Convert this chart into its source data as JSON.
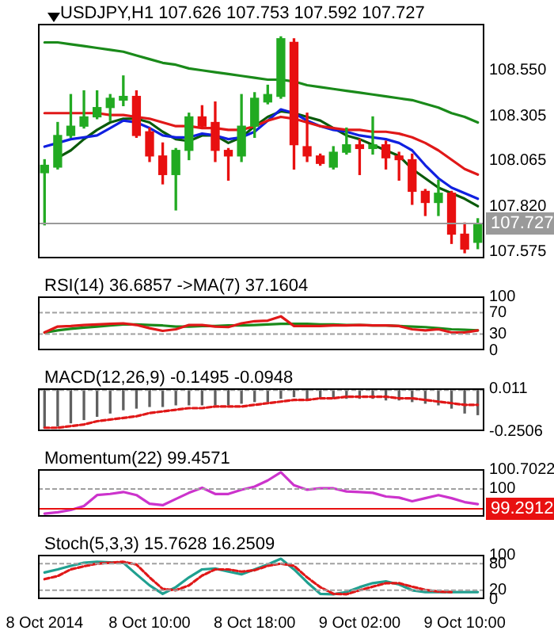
{
  "chart_data": [
    {
      "type": "candlestick",
      "title": "USDJPY,H1 107.626 107.753 107.592 107.727",
      "marker": "none",
      "categories": [
        null,
        null,
        null,
        null,
        null,
        null,
        null,
        null,
        null,
        null,
        null,
        null,
        null,
        null,
        null,
        null,
        null,
        null,
        null,
        null,
        null,
        null,
        null,
        null,
        null,
        null,
        null,
        null,
        null,
        null,
        null,
        null,
        null,
        null
      ],
      "ohlc": [
        [
          108.0,
          108.07,
          107.72,
          108.04
        ],
        [
          108.03,
          108.27,
          108.02,
          108.2
        ],
        [
          108.2,
          108.42,
          108.19,
          108.25
        ],
        [
          108.25,
          108.44,
          108.24,
          108.3
        ],
        [
          108.3,
          108.44,
          108.29,
          108.35
        ],
        [
          108.35,
          108.42,
          108.28,
          108.4
        ],
        [
          108.39,
          108.52,
          108.36,
          108.41
        ],
        [
          108.41,
          108.44,
          108.19,
          108.2
        ],
        [
          108.22,
          108.24,
          108.06,
          108.09
        ],
        [
          108.09,
          108.16,
          107.94,
          107.99
        ],
        [
          107.99,
          108.13,
          107.8,
          108.12
        ],
        [
          108.12,
          108.32,
          108.07,
          108.3
        ],
        [
          108.3,
          108.36,
          108.24,
          108.25
        ],
        [
          108.27,
          108.38,
          108.06,
          108.12
        ],
        [
          108.12,
          108.13,
          107.96,
          108.09
        ],
        [
          108.09,
          108.42,
          108.06,
          108.25
        ],
        [
          108.25,
          108.43,
          108.19,
          108.4
        ],
        [
          108.38,
          108.47,
          108.37,
          108.42
        ],
        [
          108.41,
          108.73,
          108.4,
          108.72
        ],
        [
          108.7,
          108.72,
          108.02,
          108.15
        ],
        [
          108.14,
          108.32,
          108.06,
          108.09
        ],
        [
          108.09,
          108.1,
          108.04,
          108.05
        ],
        [
          108.03,
          108.14,
          108.02,
          108.11
        ],
        [
          108.11,
          108.24,
          108.1,
          108.15
        ],
        [
          108.15,
          108.18,
          107.99,
          108.13
        ],
        [
          108.13,
          108.3,
          108.1,
          108.15
        ],
        [
          108.15,
          108.17,
          108.02,
          108.08
        ],
        [
          108.09,
          108.11,
          107.96,
          108.07
        ],
        [
          108.07,
          108.1,
          107.83,
          107.9
        ],
        [
          107.9,
          107.91,
          107.77,
          107.84
        ],
        [
          107.84,
          107.96,
          107.77,
          107.89
        ],
        [
          107.89,
          107.9,
          107.62,
          107.67
        ],
        [
          107.67,
          107.73,
          107.57,
          107.59
        ],
        [
          107.626,
          107.753,
          107.592,
          107.727
        ]
      ],
      "colors": [
        "#22aa22",
        "#22aa22",
        "#22aa22",
        "#22aa22",
        "#22aa22",
        "#22aa22",
        "#22aa22",
        "#e81010",
        "#e81010",
        "#e81010",
        "#22aa22",
        "#22aa22",
        "#e81010",
        "#e81010",
        "#e81010",
        "#22aa22",
        "#22aa22",
        "#22aa22",
        "#22aa22",
        "#e81010",
        "#e81010",
        "#e81010",
        "#22aa22",
        "#22aa22",
        "#e81010",
        "#22aa22",
        "#e81010",
        "#e81010",
        "#e81010",
        "#e81010",
        "#22aa22",
        "#e81010",
        "#e81010",
        "#22aa22"
      ],
      "series": [
        {
          "type": "line",
          "color": "#1a8a1a",
          "values": [
            108.7,
            108.7,
            108.69,
            108.68,
            108.67,
            108.66,
            108.65,
            108.63,
            108.61,
            108.59,
            108.58,
            108.56,
            108.55,
            108.54,
            108.53,
            108.52,
            108.51,
            108.5,
            108.5,
            108.49,
            108.47,
            108.46,
            108.45,
            108.44,
            108.43,
            108.42,
            108.41,
            108.4,
            108.39,
            108.37,
            108.35,
            108.32,
            108.3,
            108.27
          ]
        },
        {
          "type": "line",
          "color": "#e01818",
          "values": [
            108.32,
            108.32,
            108.32,
            108.32,
            108.32,
            108.31,
            108.31,
            108.3,
            108.29,
            108.27,
            108.25,
            108.25,
            108.24,
            108.24,
            108.23,
            108.23,
            108.25,
            108.28,
            108.3,
            108.29,
            108.27,
            108.25,
            108.24,
            108.23,
            108.23,
            108.22,
            108.22,
            108.21,
            108.19,
            108.16,
            108.12,
            108.07,
            108.02,
            107.99
          ]
        },
        {
          "type": "line",
          "color": "#1020e0",
          "values": [
            108.14,
            108.16,
            108.18,
            108.19,
            108.2,
            108.24,
            108.28,
            108.27,
            108.24,
            108.2,
            108.19,
            108.19,
            108.21,
            108.2,
            108.18,
            108.19,
            108.22,
            108.28,
            108.34,
            108.32,
            108.28,
            108.25,
            108.23,
            108.22,
            108.2,
            108.19,
            108.18,
            108.16,
            108.12,
            108.04,
            107.97,
            107.92,
            107.89,
            107.86
          ]
        },
        {
          "type": "line",
          "color": "#0a5a0a",
          "values": [
            null,
            108.08,
            108.12,
            108.18,
            108.23,
            108.27,
            108.29,
            108.29,
            108.27,
            108.22,
            108.18,
            108.17,
            108.2,
            108.2,
            108.16,
            108.19,
            108.25,
            108.3,
            108.33,
            108.32,
            108.3,
            108.28,
            108.24,
            108.2,
            108.18,
            108.15,
            108.12,
            108.09,
            108.02,
            107.97,
            107.92,
            107.89,
            107.86,
            107.82
          ]
        }
      ],
      "ylim": [
        107.54,
        108.8
      ],
      "yticks": [
        {
          "value": 108.55,
          "label": "108.550"
        },
        108.305,
        108.065,
        {
          "value": 107.82,
          "label": "107.820"
        },
        107.575
      ],
      "ref_lines": [
        {
          "axis": "y",
          "value": 107.727,
          "label": "107.727",
          "color": "#9a9a9a"
        }
      ],
      "tick_labels": "y"
    },
    {
      "type": "line",
      "title": "RSI(14) 36.6857 ->MA(7) 37.1604",
      "marker": "none",
      "categories": [
        null,
        null,
        null,
        null,
        null,
        null,
        null,
        null,
        null,
        null,
        null,
        null,
        null,
        null,
        null,
        null,
        null,
        null,
        null,
        null,
        null,
        null,
        null,
        null,
        null,
        null,
        null,
        null,
        null,
        null,
        null,
        null,
        null,
        null
      ],
      "series": [
        {
          "color": "#e01818",
          "values": [
            33,
            44,
            45,
            47,
            48,
            49,
            50,
            47,
            41,
            36,
            39,
            47,
            47,
            44,
            43,
            50,
            54,
            55,
            63,
            45,
            45,
            45,
            46,
            46,
            47,
            46,
            46,
            45,
            39,
            37,
            39,
            33,
            33,
            37
          ]
        },
        {
          "color": "#1a8a1a",
          "values": [
            33,
            37,
            40,
            42,
            44,
            46,
            48,
            48,
            47,
            46,
            44,
            44,
            45,
            45,
            46,
            46,
            47,
            48,
            49,
            49,
            49,
            48,
            48,
            47,
            47,
            46,
            46,
            45,
            44,
            43,
            41,
            39,
            38,
            37
          ]
        }
      ],
      "ylim": [
        0,
        100
      ],
      "yticks": [
        100,
        70,
        30,
        0
      ],
      "ref_lines": [
        {
          "axis": "y",
          "value": 70,
          "color": "#a0a0a0",
          "line_style": "dashed"
        },
        {
          "axis": "y",
          "value": 30,
          "color": "#a0a0a0",
          "line_style": "dashed"
        }
      ],
      "tick_labels": "y"
    },
    {
      "type": "bar",
      "title": "MACD(12,26,9) -0.1495 -0.0948",
      "marker": "none",
      "categories": [
        null,
        null,
        null,
        null,
        null,
        null,
        null,
        null,
        null,
        null,
        null,
        null,
        null,
        null,
        null,
        null,
        null,
        null,
        null,
        null,
        null,
        null,
        null,
        null,
        null,
        null,
        null,
        null,
        null,
        null,
        null,
        null,
        null,
        null
      ],
      "series": [
        {
          "color": "#606060",
          "values": [
            -0.23,
            -0.22,
            -0.2,
            -0.18,
            -0.16,
            -0.14,
            -0.12,
            -0.11,
            -0.1,
            -0.1,
            -0.09,
            -0.09,
            -0.09,
            -0.09,
            -0.09,
            -0.08,
            -0.07,
            -0.07,
            -0.05,
            -0.04,
            -0.05,
            -0.05,
            -0.05,
            -0.05,
            -0.05,
            -0.05,
            -0.06,
            -0.06,
            -0.07,
            -0.08,
            -0.09,
            -0.11,
            -0.14,
            -0.15
          ]
        },
        {
          "type": "line",
          "color": "#e01818",
          "line_style": "dashed",
          "values": [
            -0.23,
            -0.23,
            -0.22,
            -0.21,
            -0.19,
            -0.18,
            -0.17,
            -0.16,
            -0.14,
            -0.13,
            -0.12,
            -0.11,
            -0.11,
            -0.1,
            -0.1,
            -0.1,
            -0.09,
            -0.08,
            -0.07,
            -0.06,
            -0.06,
            -0.05,
            -0.05,
            -0.04,
            -0.04,
            -0.04,
            -0.04,
            -0.05,
            -0.05,
            -0.06,
            -0.07,
            -0.08,
            -0.09,
            -0.09
          ]
        }
      ],
      "ylim": [
        -0.2506,
        0.011
      ],
      "yticks": [
        0.011,
        -0.2506
      ],
      "ref_lines": [
        {
          "axis": "y",
          "value": 0,
          "color": "#a0a0a0",
          "line_style": "dashed"
        }
      ],
      "tick_labels": "y"
    },
    {
      "type": "line",
      "title": "Momentum(22) 99.4571",
      "marker": "none",
      "categories": [
        null,
        null,
        null,
        null,
        null,
        null,
        null,
        null,
        null,
        null,
        null,
        null,
        null,
        null,
        null,
        null,
        null,
        null,
        null,
        null,
        null,
        null,
        null,
        null,
        null,
        null,
        null,
        null,
        null,
        null,
        null,
        null,
        null,
        null
      ],
      "series": [
        {
          "color": "#cc33cc",
          "values": [
            99.12,
            99.17,
            99.25,
            99.39,
            99.78,
            99.82,
            99.89,
            99.78,
            99.47,
            99.42,
            99.64,
            99.86,
            100.04,
            99.82,
            99.82,
            99.97,
            100.08,
            100.3,
            100.59,
            100.13,
            99.97,
            100.02,
            100.02,
            99.91,
            99.89,
            99.86,
            99.73,
            99.69,
            99.56,
            99.67,
            99.78,
            99.67,
            99.53,
            99.46
          ]
        }
      ],
      "ylim": [
        99.01,
        100.7022
      ],
      "yticks": [
        100.7022,
        100
      ],
      "ref_lines": [
        {
          "axis": "y",
          "value": 100,
          "color": "#a0a0a0",
          "line_style": "dashed"
        },
        {
          "axis": "y",
          "value": 99.2912,
          "label": "99.2912",
          "color": "#e81010"
        }
      ],
      "tick_labels": "y"
    },
    {
      "type": "line",
      "title": "Stoch(5,3,3) 15.7628 16.2509",
      "marker": "none",
      "categories": [
        "8 Oct 2014",
        null,
        null,
        null,
        null,
        null,
        null,
        null,
        "8 Oct 10:00",
        null,
        null,
        null,
        null,
        null,
        null,
        null,
        "8 Oct 18:00",
        null,
        null,
        null,
        null,
        null,
        null,
        null,
        "9 Oct 02:00",
        null,
        null,
        null,
        null,
        null,
        null,
        null,
        "9 Oct 10:00",
        null
      ],
      "series": [
        {
          "color": "#20a090",
          "values": [
            60,
            67,
            75,
            82,
            84,
            83,
            82,
            56,
            31,
            12,
            27,
            49,
            67,
            69,
            62,
            56,
            67,
            78,
            91,
            67,
            38,
            12,
            11,
            16,
            27,
            36,
            40,
            33,
            20,
            16,
            16,
            16,
            16,
            16
          ]
        },
        {
          "color": "#e01818",
          "line_style": "dashed",
          "values": [
            45,
            52,
            67,
            74,
            80,
            82,
            84,
            78,
            49,
            23,
            20,
            31,
            53,
            67,
            67,
            62,
            65,
            75,
            80,
            75,
            49,
            27,
            12,
            11,
            20,
            28,
            36,
            36,
            28,
            21,
            17,
            16,
            null,
            null
          ]
        }
      ],
      "ylim": [
        0,
        100
      ],
      "yticks": [
        100,
        80,
        20,
        0
      ],
      "ref_lines": [
        {
          "axis": "y",
          "value": 80,
          "color": "#a0a0a0",
          "line_style": "dashed"
        },
        {
          "axis": "y",
          "value": 20,
          "color": "#a0a0a0",
          "line_style": "dashed"
        }
      ]
    }
  ]
}
